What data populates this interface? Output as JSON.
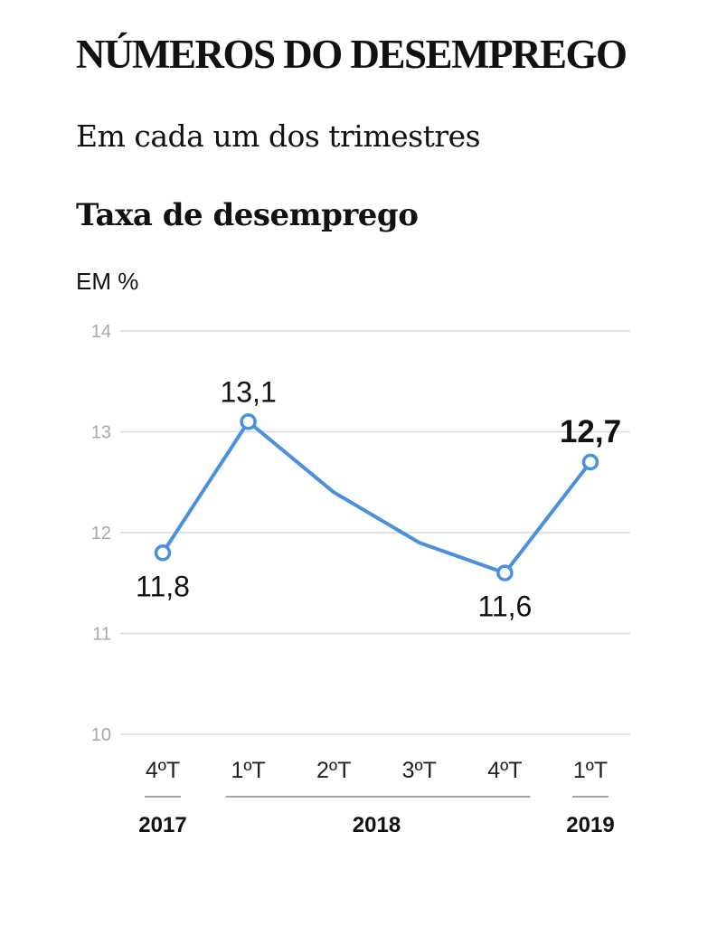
{
  "header": {
    "title": "NÚMEROS DO DESEMPREGO",
    "subtitle": "Em cada um dos trimestres"
  },
  "chart_data": {
    "type": "line",
    "title": "Taxa de desemprego",
    "ylabel": "EM %",
    "ylim": [
      10,
      14
    ],
    "yticks": [
      "10",
      "11",
      "12",
      "13",
      "14"
    ],
    "yticks_values": [
      10,
      11,
      12,
      13,
      14
    ],
    "categories": [
      "4ºT",
      "1ºT",
      "2ºT",
      "3ºT",
      "4ºT",
      "1ºT"
    ],
    "values": [
      11.8,
      13.1,
      12.4,
      11.9,
      11.6,
      12.7
    ],
    "data_labels": [
      {
        "index": 0,
        "text": "11,8",
        "position": "below"
      },
      {
        "index": 1,
        "text": "13,1",
        "position": "above"
      },
      {
        "index": 4,
        "text": "11,6",
        "position": "below"
      },
      {
        "index": 5,
        "text": "12,7",
        "position": "above",
        "bold": true
      }
    ],
    "markers_at": [
      0,
      1,
      4,
      5
    ],
    "year_groups": [
      {
        "label": "2017",
        "from": 0,
        "to": 0
      },
      {
        "label": "2018",
        "from": 1,
        "to": 4
      },
      {
        "label": "2019",
        "from": 5,
        "to": 5
      }
    ],
    "grid": true,
    "legend": "none",
    "colors": {
      "line": "#4a8fe0",
      "grid": "#d9d9d9",
      "axis_text": "#a8a8a8"
    }
  }
}
